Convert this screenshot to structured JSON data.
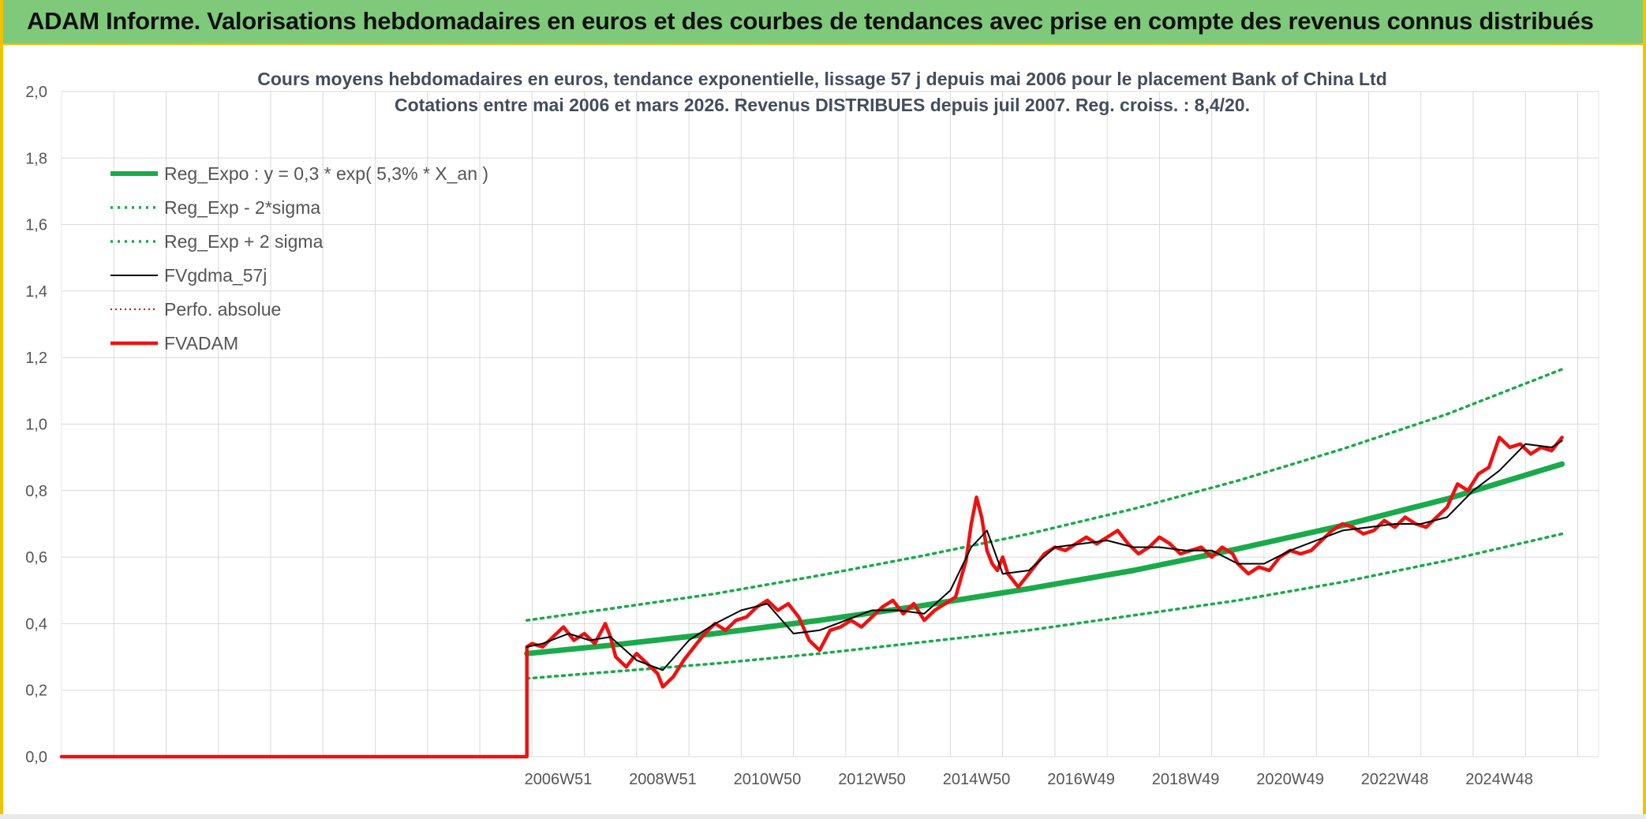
{
  "banner": {
    "title": "ADAM Informe. Valorisations hebdomadaires en euros et des courbes de tendances avec prise en compte des revenus connus distribués"
  },
  "colors": {
    "banner_bg": "#7fc97a",
    "frame_accent": "#f2c200",
    "reg_expo": "#1aaa4b",
    "fv_smooth": "#000000",
    "fvadam": "#ee1111",
    "perfo": "#cc0000",
    "grid": "#d9d9d9"
  },
  "chart_data": {
    "type": "line",
    "title_lines": [
      "Cours moyens hebdomadaires en euros, tendance exponentielle, lissage 57 j depuis mai 2006 pour le placement Bank of China Ltd",
      "Cotations entre mai 2006 et mars 2026. Revenus DISTRIBUES depuis juil 2007. Reg. croiss. : 8,4/20."
    ],
    "xlabel": "",
    "ylabel": "",
    "x_tick_labels": [
      "2006W51",
      "2008W51",
      "2010W50",
      "2012W50",
      "2014W50",
      "2016W49",
      "2018W49",
      "2020W49",
      "2022W48",
      "2024W48"
    ],
    "x_tick_years": [
      2007.0,
      2009.0,
      2011.0,
      2013.0,
      2015.0,
      2017.0,
      2019.0,
      2021.0,
      2023.0,
      2025.0
    ],
    "x_range_years": [
      1997.5,
      2026.9
    ],
    "ylim": [
      0,
      2.0
    ],
    "y_ticks": [
      "0,0",
      "0,2",
      "0,4",
      "0,6",
      "0,8",
      "1,0",
      "1,2",
      "1,4",
      "1,6",
      "1,8",
      "2,0"
    ],
    "grid": true,
    "legend_position": "top-left",
    "series": [
      {
        "name": "Reg_Expo : y = 0,3 * exp( 5,3% *  X_an )",
        "style": "thick-solid",
        "color": "#1aaa4b",
        "x": [
          2006.4,
          2008.0,
          2010.0,
          2012.0,
          2014.0,
          2016.0,
          2018.0,
          2020.0,
          2022.0,
          2024.0,
          2026.2
        ],
        "y": [
          0.31,
          0.335,
          0.37,
          0.41,
          0.455,
          0.505,
          0.56,
          0.625,
          0.695,
          0.775,
          0.88
        ]
      },
      {
        "name": "Reg_Exp - 2*sigma",
        "style": "dotted",
        "color": "#1aaa4b",
        "x": [
          2006.4,
          2008.0,
          2010.0,
          2012.0,
          2014.0,
          2016.0,
          2018.0,
          2020.0,
          2022.0,
          2024.0,
          2026.2
        ],
        "y": [
          0.235,
          0.255,
          0.28,
          0.31,
          0.345,
          0.38,
          0.425,
          0.47,
          0.525,
          0.59,
          0.67
        ]
      },
      {
        "name": "Reg_Exp + 2 sigma",
        "style": "dotted",
        "color": "#1aaa4b",
        "x": [
          2006.4,
          2008.0,
          2010.0,
          2012.0,
          2014.0,
          2016.0,
          2018.0,
          2020.0,
          2022.0,
          2024.0,
          2026.2
        ],
        "y": [
          0.41,
          0.445,
          0.49,
          0.545,
          0.605,
          0.67,
          0.745,
          0.83,
          0.925,
          1.03,
          1.165
        ]
      },
      {
        "name": "FVgdma_57j",
        "style": "thin-solid",
        "color": "#000000",
        "x": [
          2006.4,
          2006.7,
          2007.2,
          2007.6,
          2008.0,
          2008.5,
          2009.0,
          2009.5,
          2010.0,
          2010.5,
          2011.0,
          2011.5,
          2012.0,
          2012.5,
          2013.0,
          2013.5,
          2014.0,
          2014.5,
          2014.9,
          2015.2,
          2015.5,
          2016.0,
          2016.5,
          2017.0,
          2017.5,
          2018.0,
          2018.5,
          2019.0,
          2019.5,
          2020.0,
          2020.5,
          2021.0,
          2021.5,
          2022.0,
          2022.5,
          2023.0,
          2023.5,
          2024.0,
          2024.5,
          2025.0,
          2025.5,
          2026.0,
          2026.2
        ],
        "y": [
          0.33,
          0.34,
          0.37,
          0.35,
          0.36,
          0.29,
          0.26,
          0.35,
          0.4,
          0.44,
          0.46,
          0.37,
          0.38,
          0.41,
          0.44,
          0.44,
          0.43,
          0.5,
          0.63,
          0.68,
          0.55,
          0.56,
          0.63,
          0.64,
          0.65,
          0.63,
          0.63,
          0.62,
          0.62,
          0.58,
          0.58,
          0.62,
          0.65,
          0.68,
          0.69,
          0.7,
          0.7,
          0.72,
          0.8,
          0.86,
          0.94,
          0.93,
          0.95
        ]
      },
      {
        "name": "Perfo. absolue",
        "style": "dotted-thin",
        "color": "#cc0000",
        "x": [],
        "y": []
      },
      {
        "name": "FVADAM",
        "style": "thick-solid",
        "color": "#ee1111",
        "x": [
          1997.5,
          2006.4,
          2006.4,
          2006.5,
          2006.7,
          2006.9,
          2007.1,
          2007.3,
          2007.5,
          2007.7,
          2007.9,
          2008.0,
          2008.1,
          2008.3,
          2008.5,
          2008.7,
          2008.9,
          2009.0,
          2009.2,
          2009.4,
          2009.6,
          2009.8,
          2010.0,
          2010.2,
          2010.4,
          2010.6,
          2010.8,
          2011.0,
          2011.2,
          2011.4,
          2011.6,
          2011.8,
          2012.0,
          2012.2,
          2012.4,
          2012.6,
          2012.8,
          2013.0,
          2013.2,
          2013.4,
          2013.6,
          2013.8,
          2014.0,
          2014.2,
          2014.4,
          2014.6,
          2014.8,
          2014.9,
          2015.0,
          2015.1,
          2015.2,
          2015.3,
          2015.4,
          2015.5,
          2015.6,
          2015.8,
          2016.0,
          2016.1,
          2016.3,
          2016.5,
          2016.7,
          2016.9,
          2017.1,
          2017.3,
          2017.5,
          2017.7,
          2017.9,
          2018.1,
          2018.3,
          2018.5,
          2018.7,
          2018.9,
          2019.1,
          2019.3,
          2019.5,
          2019.7,
          2019.9,
          2020.0,
          2020.2,
          2020.4,
          2020.6,
          2020.8,
          2021.0,
          2021.2,
          2021.4,
          2021.6,
          2021.8,
          2022.0,
          2022.2,
          2022.4,
          2022.6,
          2022.8,
          2023.0,
          2023.2,
          2023.4,
          2023.6,
          2023.8,
          2024.0,
          2024.2,
          2024.4,
          2024.6,
          2024.8,
          2025.0,
          2025.2,
          2025.4,
          2025.6,
          2025.8,
          2026.0,
          2026.2
        ],
        "y": [
          0.0,
          0.0,
          0.33,
          0.34,
          0.33,
          0.36,
          0.39,
          0.35,
          0.37,
          0.34,
          0.4,
          0.36,
          0.3,
          0.27,
          0.31,
          0.28,
          0.25,
          0.21,
          0.24,
          0.29,
          0.33,
          0.37,
          0.4,
          0.38,
          0.41,
          0.42,
          0.45,
          0.47,
          0.44,
          0.46,
          0.42,
          0.35,
          0.32,
          0.38,
          0.39,
          0.41,
          0.39,
          0.42,
          0.45,
          0.47,
          0.43,
          0.46,
          0.41,
          0.44,
          0.46,
          0.48,
          0.59,
          0.7,
          0.78,
          0.72,
          0.62,
          0.58,
          0.56,
          0.6,
          0.55,
          0.51,
          0.55,
          0.57,
          0.61,
          0.63,
          0.62,
          0.64,
          0.66,
          0.64,
          0.66,
          0.68,
          0.64,
          0.61,
          0.63,
          0.66,
          0.64,
          0.61,
          0.62,
          0.63,
          0.6,
          0.63,
          0.61,
          0.58,
          0.55,
          0.57,
          0.56,
          0.6,
          0.62,
          0.61,
          0.62,
          0.65,
          0.68,
          0.7,
          0.69,
          0.67,
          0.68,
          0.71,
          0.69,
          0.72,
          0.7,
          0.69,
          0.72,
          0.75,
          0.82,
          0.8,
          0.85,
          0.87,
          0.96,
          0.93,
          0.94,
          0.91,
          0.93,
          0.92,
          0.96
        ]
      }
    ]
  }
}
